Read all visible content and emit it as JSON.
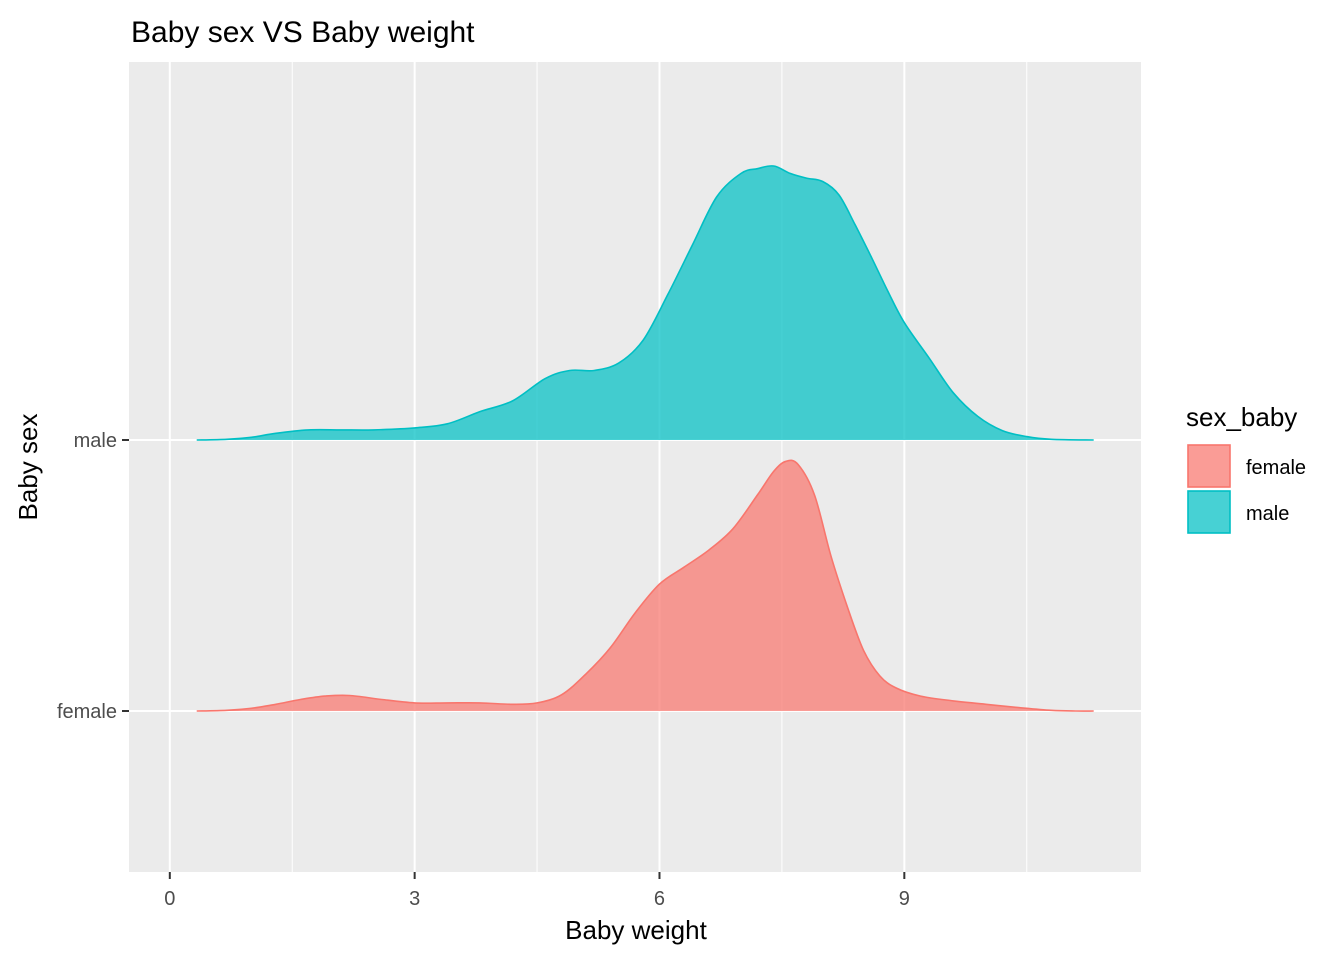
{
  "chart_data": {
    "type": "ridgeline",
    "title": "Baby sex VS Baby weight",
    "xlabel": "Baby weight",
    "ylabel": "Baby sex",
    "xlim": [
      -0.5,
      11.9
    ],
    "x_ticks": [
      0,
      3,
      6,
      9
    ],
    "x_minor_ticks": [
      1.5,
      4.5,
      7.5,
      10.5
    ],
    "categories": [
      "female",
      "male"
    ],
    "grid": true,
    "legend": {
      "title": "sex_baby",
      "position": "right",
      "entries": [
        "female",
        "male"
      ]
    },
    "colors": {
      "female_fill": "#F8766D",
      "female_line": "#F8766D",
      "male_fill": "#00BFC4",
      "male_line": "#00BFC4",
      "panel": "#EBEBEB",
      "grid": "#FFFFFF"
    },
    "series": [
      {
        "name": "female",
        "x": [
          0.33,
          0.7,
          1.0,
          1.3,
          1.6,
          1.9,
          2.2,
          2.6,
          3.0,
          3.4,
          3.8,
          4.2,
          4.5,
          4.8,
          5.1,
          5.4,
          5.7,
          6.0,
          6.3,
          6.6,
          6.9,
          7.2,
          7.4,
          7.55,
          7.7,
          7.9,
          8.1,
          8.3,
          8.5,
          8.7,
          8.9,
          9.2,
          9.6,
          10.0,
          10.4,
          10.8,
          11.1,
          11.32
        ],
        "y": [
          0.0,
          0.01,
          0.04,
          0.1,
          0.17,
          0.22,
          0.23,
          0.17,
          0.12,
          0.12,
          0.12,
          0.1,
          0.12,
          0.24,
          0.55,
          0.94,
          1.45,
          1.88,
          2.13,
          2.38,
          2.7,
          3.2,
          3.55,
          3.7,
          3.65,
          3.2,
          2.3,
          1.55,
          0.9,
          0.52,
          0.34,
          0.22,
          0.15,
          0.1,
          0.05,
          0.01,
          0.0,
          0.0
        ]
      },
      {
        "name": "male",
        "x": [
          0.33,
          0.7,
          1.0,
          1.3,
          1.7,
          2.1,
          2.5,
          3.0,
          3.4,
          3.8,
          4.2,
          4.6,
          4.9,
          5.2,
          5.5,
          5.8,
          6.1,
          6.4,
          6.7,
          7.0,
          7.2,
          7.4,
          7.6,
          7.8,
          8.0,
          8.2,
          8.4,
          8.6,
          8.8,
          9.0,
          9.3,
          9.6,
          9.9,
          10.2,
          10.5,
          10.8,
          11.32
        ],
        "y": [
          0.0,
          0.01,
          0.04,
          0.1,
          0.15,
          0.15,
          0.15,
          0.18,
          0.24,
          0.42,
          0.58,
          0.91,
          1.03,
          1.03,
          1.14,
          1.48,
          2.15,
          2.88,
          3.6,
          3.95,
          4.02,
          4.06,
          3.95,
          3.88,
          3.83,
          3.63,
          3.18,
          2.7,
          2.2,
          1.74,
          1.22,
          0.7,
          0.35,
          0.14,
          0.05,
          0.01,
          0.0
        ]
      }
    ]
  }
}
